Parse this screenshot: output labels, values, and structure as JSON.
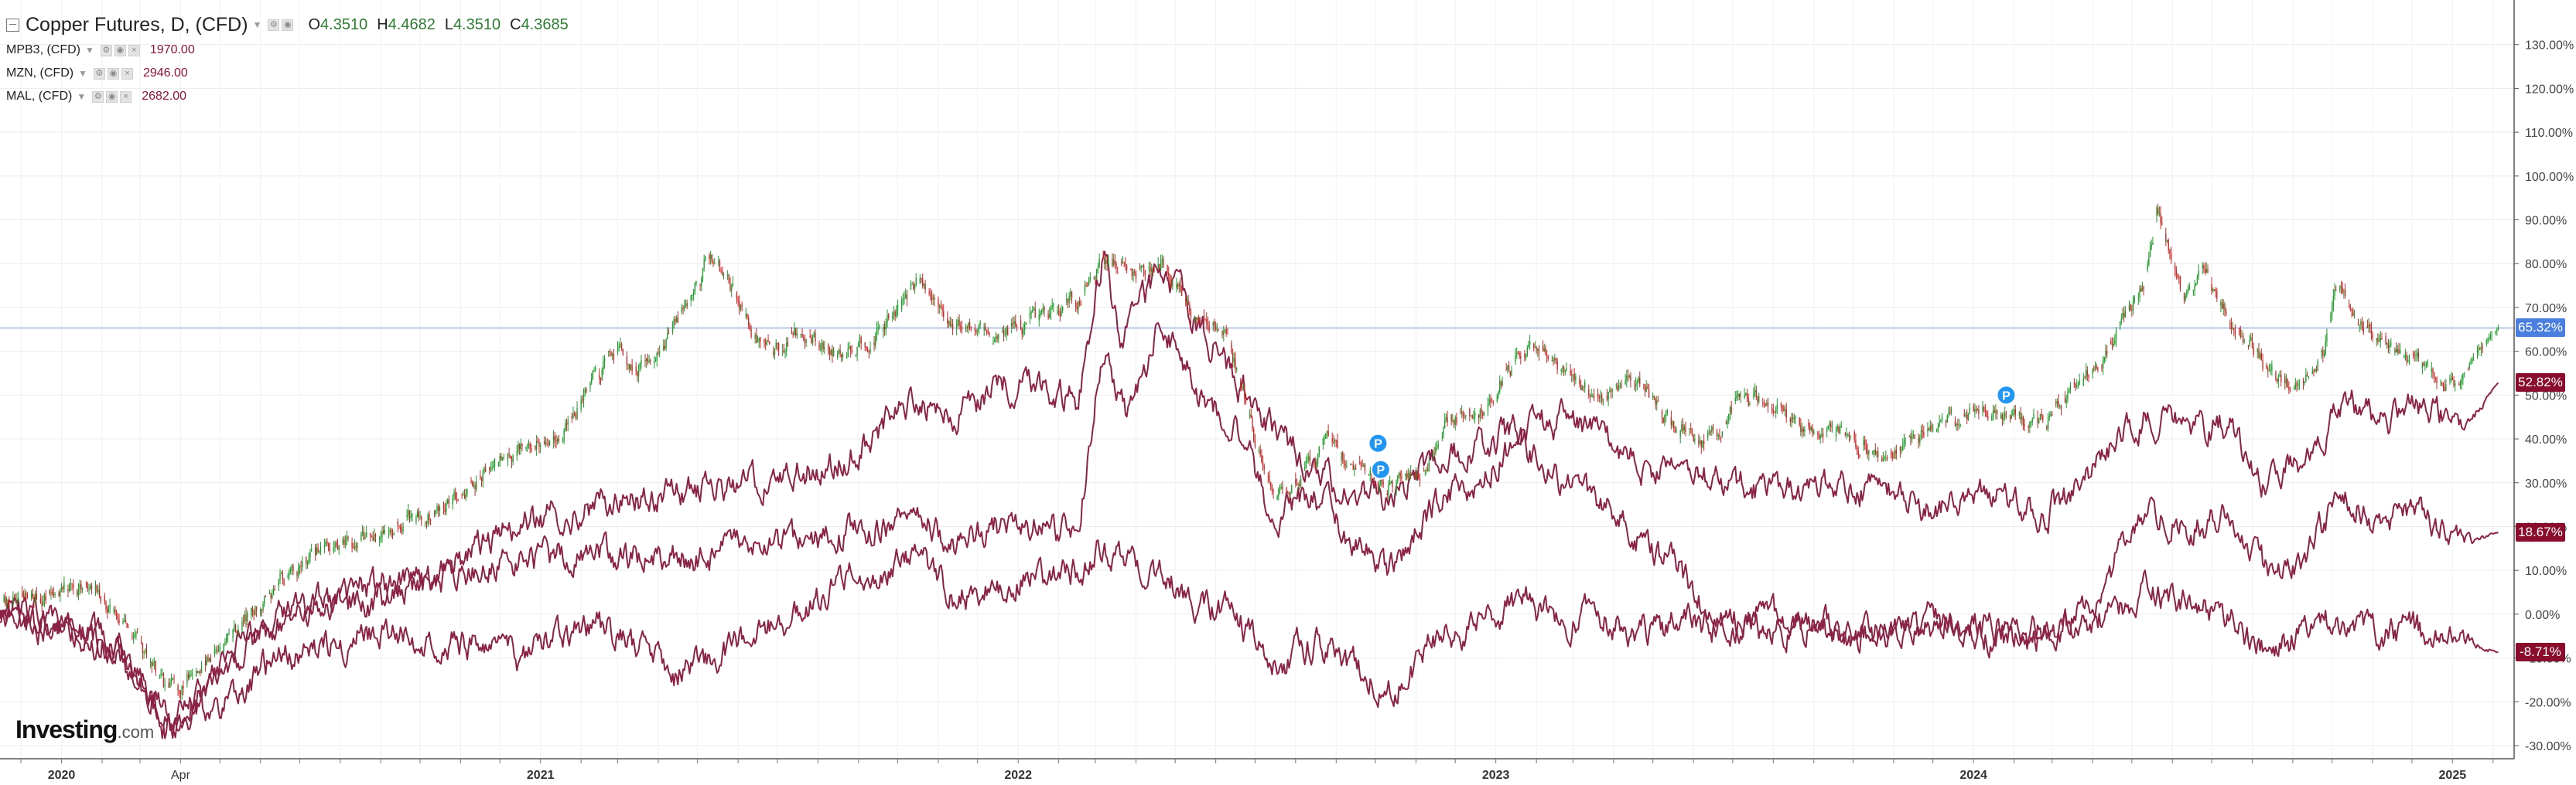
{
  "legend": {
    "main": {
      "title": "Copper Futures, D, (CFD)",
      "open_label": "O",
      "open": "4.3510",
      "high_label": "H",
      "high": "4.4682",
      "low_label": "L",
      "low": "4.3510",
      "close_label": "C",
      "close": "4.3685"
    },
    "series": [
      {
        "name": "MPB3, (CFD)",
        "value": "1970.00"
      },
      {
        "name": "MZN, (CFD)",
        "value": "2946.00"
      },
      {
        "name": "MAL, (CFD)",
        "value": "2682.00"
      }
    ]
  },
  "logo": {
    "text": "Investing",
    "suffix": ".com"
  },
  "colors": {
    "up": "#1f9b2c",
    "down": "#c62828",
    "comparison": "#8b2346",
    "crosshair_line": "#b8c8ea",
    "badge_main": "#4a7fe0",
    "badge_series": "#8b0d2e",
    "event_marker": "#2196f3"
  },
  "events": [
    {
      "label": "P",
      "date": "2022-10-03",
      "y": 39
    },
    {
      "label": "P",
      "date": "2022-10-05",
      "y": 33
    },
    {
      "label": "P",
      "date": "2024-01-26",
      "y": 50
    }
  ],
  "chart_data": {
    "type": "line",
    "subtype": "percent-change comparison with candlesticks",
    "x_range": [
      "2019-11-15",
      "2025-02-10"
    ],
    "x_ticks": [
      {
        "date": "2020-01-01",
        "label": "2020",
        "bold": true
      },
      {
        "date": "2020-04-01",
        "label": "Apr",
        "bold": false
      },
      {
        "date": "2021-01-01",
        "label": "2021",
        "bold": true
      },
      {
        "date": "2022-01-01",
        "label": "2022",
        "bold": true
      },
      {
        "date": "2023-01-01",
        "label": "2023",
        "bold": true
      },
      {
        "date": "2024-01-01",
        "label": "2024",
        "bold": true
      },
      {
        "date": "2025-01-01",
        "label": "2025",
        "bold": true
      }
    ],
    "ylim": [
      -33,
      137
    ],
    "y_ticks": [
      -30,
      -20,
      -10,
      0,
      10,
      20,
      30,
      40,
      50,
      60,
      70,
      80,
      90,
      100,
      110,
      120,
      130
    ],
    "y_tick_labels": [
      "-30.00%",
      "-20.00%",
      "-10.00%",
      "0.00%",
      "10.00%",
      "20.00%",
      "30.00%",
      "40.00%",
      "50.00%",
      "60.00%",
      "70.00%",
      "80.00%",
      "90.00%",
      "100.00%",
      "110.00%",
      "120.00%",
      "130.00%"
    ],
    "grid": true,
    "last_value_line": 65.32,
    "series": [
      {
        "name": "Copper Futures, D, (CFD)",
        "style": "candles",
        "last_label": "65.32%",
        "points": [
          [
            "2019-11-15",
            2
          ],
          [
            "2019-12-15",
            4
          ],
          [
            "2020-01-15",
            7
          ],
          [
            "2020-02-05",
            2
          ],
          [
            "2020-02-25",
            -4
          ],
          [
            "2020-03-20",
            -18
          ],
          [
            "2020-04-15",
            -12
          ],
          [
            "2020-05-15",
            -3
          ],
          [
            "2020-06-15",
            7
          ],
          [
            "2020-07-15",
            14
          ],
          [
            "2020-08-15",
            17
          ],
          [
            "2020-09-15",
            20
          ],
          [
            "2020-10-15",
            24
          ],
          [
            "2020-11-15",
            31
          ],
          [
            "2020-12-15",
            38
          ],
          [
            "2021-01-10",
            40
          ],
          [
            "2021-02-05",
            50
          ],
          [
            "2021-02-25",
            60
          ],
          [
            "2021-03-15",
            55
          ],
          [
            "2021-04-15",
            66
          ],
          [
            "2021-05-10",
            82
          ],
          [
            "2021-05-25",
            76
          ],
          [
            "2021-06-20",
            60
          ],
          [
            "2021-07-15",
            64
          ],
          [
            "2021-08-15",
            60
          ],
          [
            "2021-09-15",
            64
          ],
          [
            "2021-10-18",
            76
          ],
          [
            "2021-11-15",
            66
          ],
          [
            "2021-12-15",
            64
          ],
          [
            "2022-01-15",
            66
          ],
          [
            "2022-02-15",
            72
          ],
          [
            "2022-03-07",
            82
          ],
          [
            "2022-03-25",
            78
          ],
          [
            "2022-04-20",
            80
          ],
          [
            "2022-05-15",
            70
          ],
          [
            "2022-06-10",
            64
          ],
          [
            "2022-07-01",
            40
          ],
          [
            "2022-07-15",
            26
          ],
          [
            "2022-08-05",
            32
          ],
          [
            "2022-08-25",
            40
          ],
          [
            "2022-09-15",
            34
          ],
          [
            "2022-10-10",
            30
          ],
          [
            "2022-11-05",
            33
          ],
          [
            "2022-11-25",
            44
          ],
          [
            "2022-12-20",
            46
          ],
          [
            "2023-01-10",
            56
          ],
          [
            "2023-01-28",
            61
          ],
          [
            "2023-02-25",
            54
          ],
          [
            "2023-03-20",
            49
          ],
          [
            "2023-04-15",
            55
          ],
          [
            "2023-05-15",
            44
          ],
          [
            "2023-06-10",
            39
          ],
          [
            "2023-07-01",
            46
          ],
          [
            "2023-07-25",
            50
          ],
          [
            "2023-08-20",
            43
          ],
          [
            "2023-09-20",
            42
          ],
          [
            "2023-10-20",
            36
          ],
          [
            "2023-11-15",
            40
          ],
          [
            "2023-12-15",
            45
          ],
          [
            "2024-01-15",
            47
          ],
          [
            "2024-02-15",
            43
          ],
          [
            "2024-03-15",
            50
          ],
          [
            "2024-04-15",
            62
          ],
          [
            "2024-05-10",
            75
          ],
          [
            "2024-05-20",
            92
          ],
          [
            "2024-06-10",
            72
          ],
          [
            "2024-06-25",
            78
          ],
          [
            "2024-07-15",
            68
          ],
          [
            "2024-08-10",
            57
          ],
          [
            "2024-09-01",
            52
          ],
          [
            "2024-09-25",
            60
          ],
          [
            "2024-10-05",
            74
          ],
          [
            "2024-10-25",
            67
          ],
          [
            "2024-11-15",
            60
          ],
          [
            "2024-12-15",
            55
          ],
          [
            "2025-01-05",
            52
          ],
          [
            "2025-01-15",
            58
          ],
          [
            "2025-02-05",
            65.32
          ]
        ]
      },
      {
        "name": "MPB3, (CFD)",
        "style": "line",
        "last_label": "52.82%",
        "points": [
          [
            "2019-11-15",
            0
          ],
          [
            "2020-01-15",
            -4
          ],
          [
            "2020-02-15",
            -8
          ],
          [
            "2020-03-20",
            -26
          ],
          [
            "2020-04-20",
            -18
          ],
          [
            "2020-05-20",
            -6
          ],
          [
            "2020-06-20",
            -1
          ],
          [
            "2020-07-20",
            3
          ],
          [
            "2020-08-20",
            2
          ],
          [
            "2020-10-15",
            10
          ],
          [
            "2020-12-15",
            20
          ],
          [
            "2021-02-15",
            25
          ],
          [
            "2021-04-15",
            28
          ],
          [
            "2021-06-15",
            30
          ],
          [
            "2021-08-15",
            34
          ],
          [
            "2021-10-15",
            50
          ],
          [
            "2021-11-15",
            45
          ],
          [
            "2021-12-15",
            53
          ],
          [
            "2022-01-15",
            54
          ],
          [
            "2022-02-15",
            48
          ],
          [
            "2022-03-07",
            82
          ],
          [
            "2022-03-20",
            64
          ],
          [
            "2022-04-20",
            78
          ],
          [
            "2022-05-20",
            66
          ],
          [
            "2022-06-20",
            52
          ],
          [
            "2022-07-15",
            42
          ],
          [
            "2022-08-15",
            33
          ],
          [
            "2022-09-15",
            28
          ],
          [
            "2022-10-15",
            26
          ],
          [
            "2022-11-15",
            36
          ],
          [
            "2022-12-15",
            38
          ],
          [
            "2023-01-20",
            42
          ],
          [
            "2023-02-20",
            44
          ],
          [
            "2023-03-20",
            40
          ],
          [
            "2023-04-20",
            34
          ],
          [
            "2023-06-01",
            32
          ],
          [
            "2023-07-15",
            28
          ],
          [
            "2023-09-01",
            30
          ],
          [
            "2023-10-20",
            28
          ],
          [
            "2023-12-01",
            24
          ],
          [
            "2024-01-15",
            28
          ],
          [
            "2024-02-15",
            22
          ],
          [
            "2024-03-15",
            27
          ],
          [
            "2024-04-15",
            38
          ],
          [
            "2024-05-15",
            46
          ],
          [
            "2024-06-10",
            42
          ],
          [
            "2024-07-15",
            44
          ],
          [
            "2024-08-10",
            30
          ],
          [
            "2024-09-10",
            36
          ],
          [
            "2024-10-10",
            48
          ],
          [
            "2024-11-10",
            44
          ],
          [
            "2024-12-10",
            48
          ],
          [
            "2025-01-10",
            42
          ],
          [
            "2025-02-05",
            52.82
          ]
        ]
      },
      {
        "name": "MZN, (CFD)",
        "style": "line",
        "last_label": "18.67%",
        "points": [
          [
            "2019-11-15",
            2
          ],
          [
            "2020-01-15",
            -3
          ],
          [
            "2020-02-15",
            -10
          ],
          [
            "2020-03-25",
            -26
          ],
          [
            "2020-04-25",
            -14
          ],
          [
            "2020-06-15",
            -2
          ],
          [
            "2020-08-15",
            6
          ],
          [
            "2020-10-15",
            8
          ],
          [
            "2020-12-15",
            12
          ],
          [
            "2021-02-15",
            14
          ],
          [
            "2021-04-15",
            12
          ],
          [
            "2021-06-15",
            15
          ],
          [
            "2021-08-15",
            18
          ],
          [
            "2021-10-15",
            22
          ],
          [
            "2021-11-15",
            16
          ],
          [
            "2021-12-15",
            20
          ],
          [
            "2022-01-15",
            20
          ],
          [
            "2022-02-15",
            18
          ],
          [
            "2022-03-07",
            62
          ],
          [
            "2022-03-25",
            45
          ],
          [
            "2022-04-20",
            66
          ],
          [
            "2022-05-20",
            50
          ],
          [
            "2022-06-20",
            42
          ],
          [
            "2022-07-15",
            22
          ],
          [
            "2022-08-15",
            28
          ],
          [
            "2022-09-15",
            16
          ],
          [
            "2022-10-15",
            10
          ],
          [
            "2022-11-15",
            24
          ],
          [
            "2022-12-15",
            30
          ],
          [
            "2023-01-20",
            40
          ],
          [
            "2023-02-20",
            30
          ],
          [
            "2023-03-20",
            25
          ],
          [
            "2023-04-20",
            18
          ],
          [
            "2023-05-20",
            10
          ],
          [
            "2023-06-20",
            -2
          ],
          [
            "2023-08-01",
            0
          ],
          [
            "2023-09-15",
            -4
          ],
          [
            "2023-11-01",
            -5
          ],
          [
            "2023-12-15",
            -2
          ],
          [
            "2024-01-15",
            -3
          ],
          [
            "2024-02-15",
            -4
          ],
          [
            "2024-03-15",
            -2
          ],
          [
            "2024-04-15",
            10
          ],
          [
            "2024-05-15",
            25
          ],
          [
            "2024-06-10",
            20
          ],
          [
            "2024-07-15",
            22
          ],
          [
            "2024-08-10",
            10
          ],
          [
            "2024-09-10",
            14
          ],
          [
            "2024-10-10",
            28
          ],
          [
            "2024-11-10",
            20
          ],
          [
            "2024-12-10",
            24
          ],
          [
            "2025-01-10",
            16
          ],
          [
            "2025-02-05",
            18.67
          ]
        ]
      },
      {
        "name": "MAL, (CFD)",
        "style": "line",
        "last_label": "-8.71%",
        "points": [
          [
            "2019-11-15",
            -1
          ],
          [
            "2020-01-15",
            -4
          ],
          [
            "2020-02-15",
            -10
          ],
          [
            "2020-03-25",
            -25
          ],
          [
            "2020-04-25",
            -22
          ],
          [
            "2020-06-15",
            -10
          ],
          [
            "2020-08-15",
            -5
          ],
          [
            "2020-10-15",
            -5
          ],
          [
            "2020-12-15",
            -10
          ],
          [
            "2021-02-15",
            -2
          ],
          [
            "2021-04-15",
            -14
          ],
          [
            "2021-06-15",
            -5
          ],
          [
            "2021-08-15",
            6
          ],
          [
            "2021-10-15",
            14
          ],
          [
            "2021-11-15",
            4
          ],
          [
            "2021-12-15",
            6
          ],
          [
            "2022-01-15",
            8
          ],
          [
            "2022-02-15",
            10
          ],
          [
            "2022-03-07",
            16
          ],
          [
            "2022-04-15",
            10
          ],
          [
            "2022-05-15",
            4
          ],
          [
            "2022-06-15",
            0
          ],
          [
            "2022-07-15",
            -12
          ],
          [
            "2022-08-15",
            -6
          ],
          [
            "2022-09-15",
            -12
          ],
          [
            "2022-10-15",
            -18
          ],
          [
            "2022-11-15",
            -6
          ],
          [
            "2022-12-15",
            -4
          ],
          [
            "2023-01-20",
            4
          ],
          [
            "2023-02-20",
            -2
          ],
          [
            "2023-03-20",
            0
          ],
          [
            "2023-04-20",
            -4
          ],
          [
            "2023-06-01",
            -2
          ],
          [
            "2023-07-15",
            -4
          ],
          [
            "2023-09-01",
            -2
          ],
          [
            "2023-10-20",
            -6
          ],
          [
            "2023-12-01",
            -2
          ],
          [
            "2024-01-15",
            -6
          ],
          [
            "2024-02-15",
            -5
          ],
          [
            "2024-03-15",
            -4
          ],
          [
            "2024-04-15",
            0
          ],
          [
            "2024-05-15",
            6
          ],
          [
            "2024-06-10",
            2
          ],
          [
            "2024-07-15",
            0
          ],
          [
            "2024-08-10",
            -8
          ],
          [
            "2024-09-10",
            -5
          ],
          [
            "2024-10-10",
            0
          ],
          [
            "2024-11-10",
            -4
          ],
          [
            "2024-12-10",
            -4
          ],
          [
            "2025-01-10",
            -6
          ],
          [
            "2025-02-05",
            -8.71
          ]
        ]
      }
    ]
  }
}
